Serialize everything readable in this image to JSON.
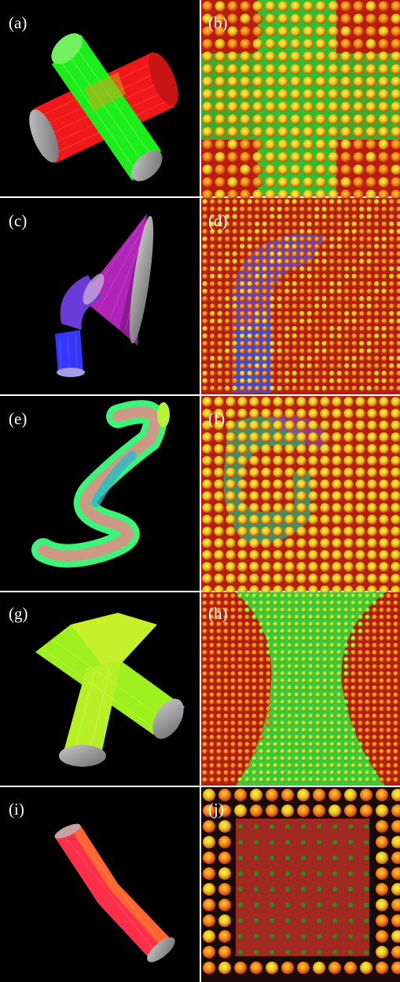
{
  "figure": {
    "panels": [
      {
        "id": "a",
        "label": "(a)",
        "kind": "fiber-render",
        "shape": "crossing-cylinders",
        "colors": [
          "#ff1a1a",
          "#19ff19"
        ]
      },
      {
        "id": "b",
        "label": "(b)",
        "kind": "glyph-grid",
        "shape": "cross",
        "background": "#c31e12",
        "region": "#2fbf2f"
      },
      {
        "id": "c",
        "label": "(c)",
        "kind": "fiber-render",
        "shape": "fanning-tube",
        "colors": [
          "#2a34ff",
          "#c224c8"
        ]
      },
      {
        "id": "d",
        "label": "(d)",
        "kind": "glyph-grid",
        "shape": "fan",
        "background": "#b0200f",
        "region": "#6a4ab0"
      },
      {
        "id": "e",
        "label": "(e)",
        "kind": "fiber-render",
        "shape": "helix",
        "colors": [
          "#ff6f70",
          "#3cfc78",
          "#2fb6c8"
        ]
      },
      {
        "id": "f",
        "label": "(f)",
        "kind": "glyph-grid",
        "shape": "helix",
        "background": "#b3210e",
        "region": "#3a9a6a"
      },
      {
        "id": "g",
        "label": "(g)",
        "kind": "fiber-render",
        "shape": "kissing-cylinders",
        "colors": [
          "#9ef81e",
          "#dff23a"
        ]
      },
      {
        "id": "h",
        "label": "(h)",
        "kind": "glyph-grid",
        "shape": "kissing",
        "background": "#b01f0d",
        "region": "#3cc83c"
      },
      {
        "id": "i",
        "label": "(i)",
        "kind": "fiber-render",
        "shape": "bent-tube",
        "colors": [
          "#ff2a58",
          "#ff7a2a"
        ]
      },
      {
        "id": "j",
        "label": "(j)",
        "kind": "glyph-grid",
        "shape": "sparse",
        "background": "#8c1e12",
        "region": "#a02a22"
      }
    ]
  }
}
